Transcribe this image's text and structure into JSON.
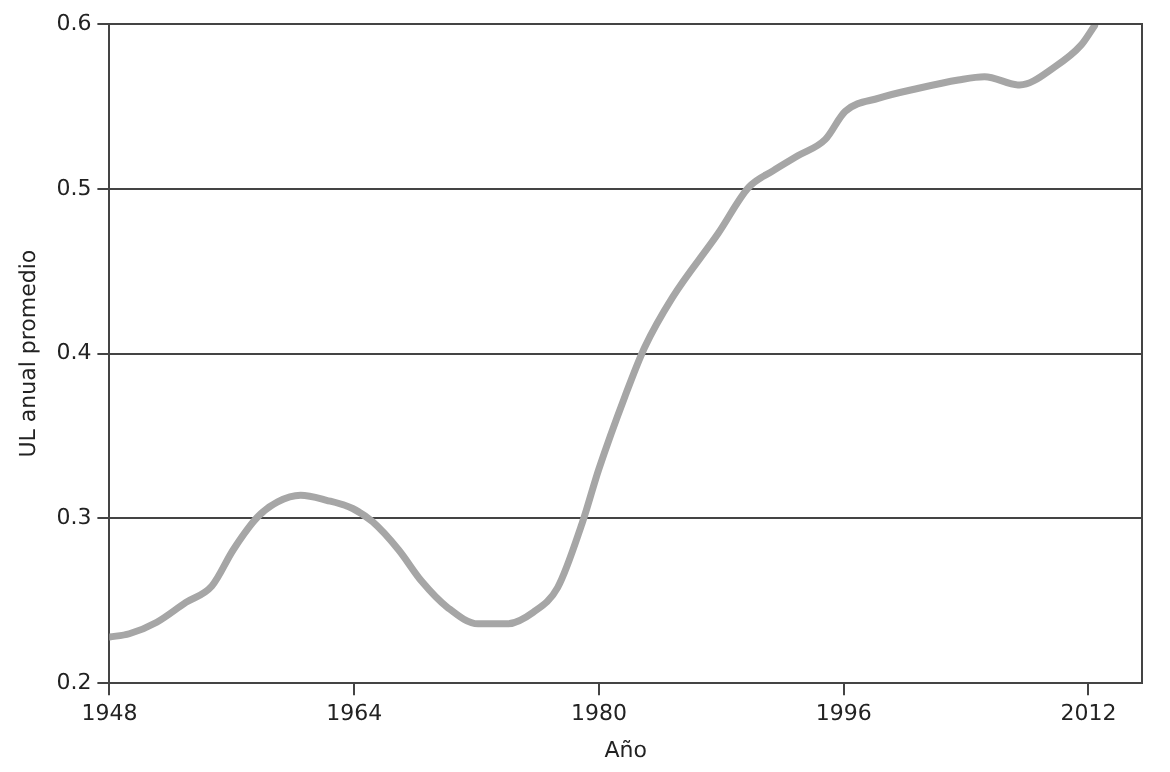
{
  "chart_data": {
    "type": "line",
    "xlabel": "Año",
    "ylabel": "UL anual promedio",
    "x": [
      1948,
      1949.3,
      1951.1,
      1953,
      1954.7,
      1956.1,
      1957.7,
      1959,
      1960.5,
      1962.2,
      1963.9,
      1965.2,
      1966.9,
      1968.4,
      1970.1,
      1972.1,
      1974,
      1975.7,
      1977.3,
      1978.9,
      1980,
      1981.7,
      1983,
      1984.8,
      1987.8,
      1989.8,
      1991.4,
      1993,
      1994.8,
      1996.1,
      1998.3,
      2000.9,
      2003.5,
      2005.2,
      2007.5,
      2009.8,
      2011.5,
      2012.4
    ],
    "series": [
      {
        "color": "#a6a6a6",
        "values": [
          0.228,
          0.23,
          0.237,
          0.249,
          0.259,
          0.281,
          0.301,
          0.31,
          0.314,
          0.311,
          0.306,
          0.298,
          0.281,
          0.262,
          0.246,
          0.236,
          0.236,
          0.243,
          0.258,
          0.297,
          0.33,
          0.374,
          0.404,
          0.434,
          0.473,
          0.501,
          0.511,
          0.52,
          0.53,
          0.547,
          0.555,
          0.561,
          0.566,
          0.568,
          0.563,
          0.574,
          0.587,
          0.599
        ]
      }
    ],
    "xlim": [
      1948,
      2015.5
    ],
    "xticks": [
      1948,
      1964,
      1980,
      1996,
      2012
    ],
    "ylim": [
      0.2,
      0.6
    ],
    "yticks": [
      {
        "value": 0.2,
        "label": "0.2"
      },
      {
        "value": 0.3,
        "label": "0.3"
      },
      {
        "value": 0.4,
        "label": "0.4"
      },
      {
        "value": 0.5,
        "label": "0.5"
      },
      {
        "value": 0.6,
        "label": "0.6"
      }
    ],
    "grid": "y",
    "legend": false,
    "marker": "none",
    "line_style": "solid"
  }
}
